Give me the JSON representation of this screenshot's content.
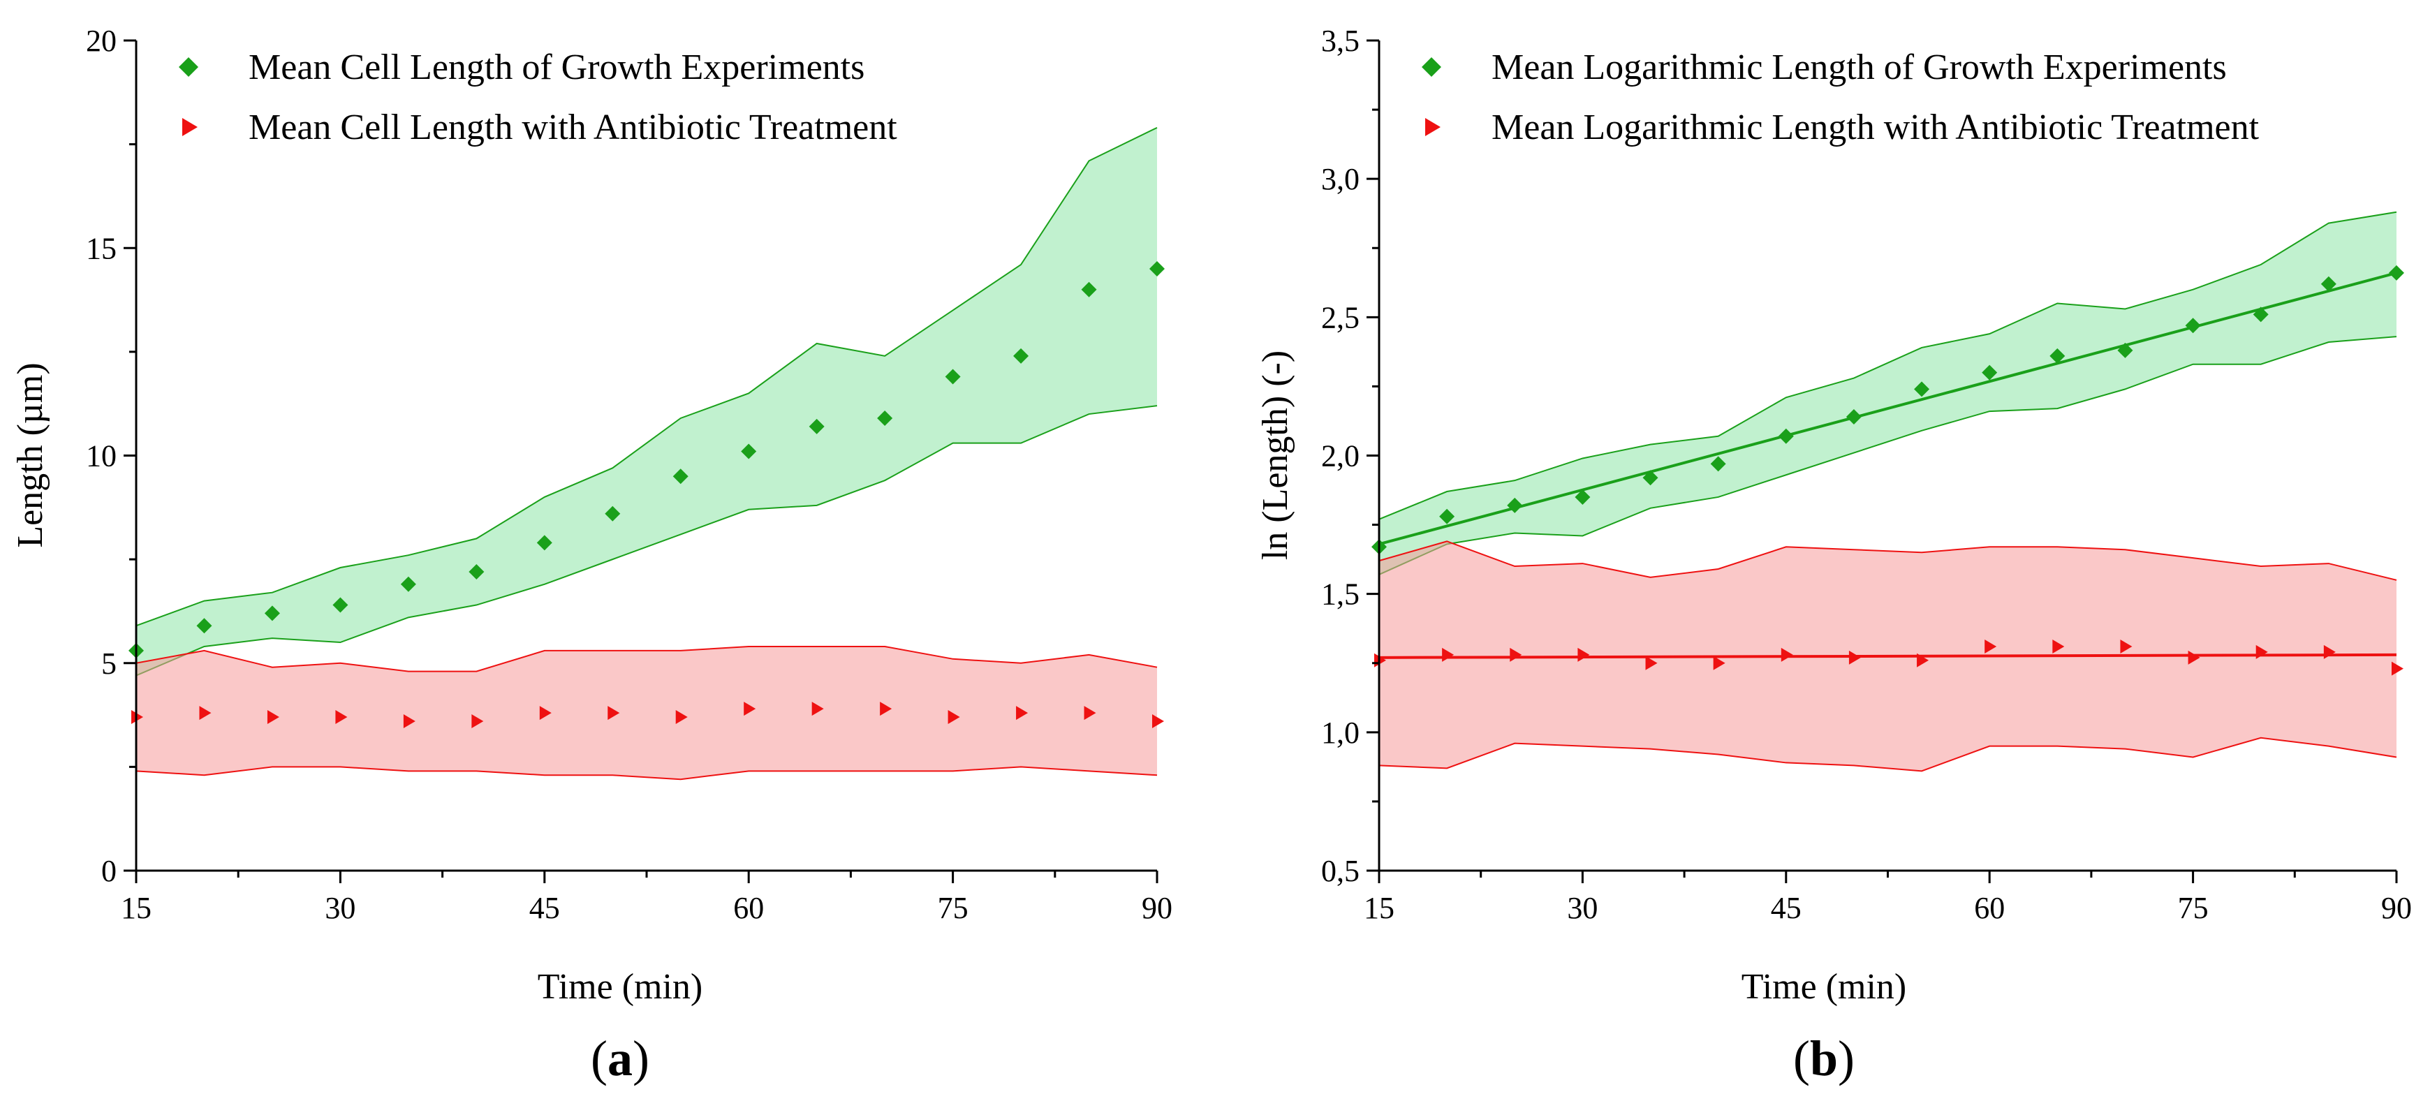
{
  "chart_data": [
    {
      "type": "scatter",
      "panel_label": "a",
      "xlabel": "Time (min)",
      "ylabel": "Length (µm)",
      "xlim": [
        15,
        90
      ],
      "ylim": [
        0,
        20
      ],
      "x_ticks": [
        15,
        30,
        45,
        60,
        75,
        90
      ],
      "x_tick_labels": [
        "15",
        "30",
        "45",
        "60",
        "75",
        "90"
      ],
      "y_ticks": [
        0,
        5,
        10,
        15,
        20
      ],
      "y_tick_labels": [
        "0",
        "5",
        "10",
        "15",
        "20"
      ],
      "legend_position": "top-left",
      "series": [
        {
          "name": "Mean Cell Length of Growth Experiments",
          "marker": "diamond",
          "color": "#1aa01a",
          "band_color": "#8ee6a8",
          "x": [
            15,
            20,
            25,
            30,
            35,
            40,
            45,
            50,
            55,
            60,
            65,
            70,
            75,
            80,
            85,
            90
          ],
          "y": [
            5.3,
            5.9,
            6.2,
            6.4,
            6.9,
            7.2,
            7.9,
            8.6,
            9.5,
            10.1,
            10.7,
            10.9,
            11.9,
            12.4,
            14.0,
            14.5
          ],
          "lower": [
            4.7,
            5.4,
            5.6,
            5.5,
            6.1,
            6.4,
            6.9,
            7.5,
            8.1,
            8.7,
            8.8,
            9.4,
            10.3,
            10.3,
            11.0,
            11.2
          ],
          "upper": [
            5.9,
            6.5,
            6.7,
            7.3,
            7.6,
            8.0,
            9.0,
            9.7,
            10.9,
            11.5,
            12.7,
            12.4,
            13.5,
            14.6,
            17.1,
            17.9
          ]
        },
        {
          "name": "Mean Cell Length with Antibiotic Treatment",
          "marker": "triangle-right",
          "color": "#ee1111",
          "band_color": "#f59a9a",
          "x": [
            15,
            20,
            25,
            30,
            35,
            40,
            45,
            50,
            55,
            60,
            65,
            70,
            75,
            80,
            85,
            90
          ],
          "y": [
            3.7,
            3.8,
            3.7,
            3.7,
            3.6,
            3.6,
            3.8,
            3.8,
            3.7,
            3.9,
            3.9,
            3.9,
            3.7,
            3.8,
            3.8,
            3.6
          ],
          "lower": [
            2.4,
            2.3,
            2.5,
            2.5,
            2.4,
            2.4,
            2.3,
            2.3,
            2.2,
            2.4,
            2.4,
            2.4,
            2.4,
            2.5,
            2.4,
            2.3
          ],
          "upper": [
            5.0,
            5.3,
            4.9,
            5.0,
            4.8,
            4.8,
            5.3,
            5.3,
            5.3,
            5.4,
            5.4,
            5.4,
            5.1,
            5.0,
            5.2,
            4.9
          ]
        }
      ]
    },
    {
      "type": "scatter",
      "panel_label": "b",
      "xlabel": "Time (min)",
      "ylabel": "ln (Length) (-)",
      "xlim": [
        15,
        90
      ],
      "ylim": [
        0.5,
        3.5
      ],
      "x_ticks": [
        15,
        30,
        45,
        60,
        75,
        90
      ],
      "x_tick_labels": [
        "15",
        "30",
        "45",
        "60",
        "75",
        "90"
      ],
      "y_ticks": [
        0.5,
        1.0,
        1.5,
        2.0,
        2.5,
        3.0,
        3.5
      ],
      "y_tick_labels": [
        "0,5",
        "1,0",
        "1,5",
        "2,0",
        "2,5",
        "3,0",
        "3,5"
      ],
      "legend_position": "top-left",
      "series": [
        {
          "name": "Mean Logarithmic Length of Growth Experiments",
          "marker": "diamond",
          "color": "#1aa01a",
          "band_color": "#8ee6a8",
          "x": [
            15,
            20,
            25,
            30,
            35,
            40,
            45,
            50,
            55,
            60,
            65,
            70,
            75,
            80,
            85,
            90
          ],
          "y": [
            1.67,
            1.78,
            1.82,
            1.85,
            1.92,
            1.97,
            2.07,
            2.14,
            2.24,
            2.3,
            2.36,
            2.38,
            2.47,
            2.51,
            2.62,
            2.66
          ],
          "lower": [
            1.57,
            1.68,
            1.72,
            1.71,
            1.81,
            1.85,
            1.93,
            2.01,
            2.09,
            2.16,
            2.17,
            2.24,
            2.33,
            2.33,
            2.41,
            2.43
          ],
          "upper": [
            1.77,
            1.87,
            1.91,
            1.99,
            2.04,
            2.07,
            2.21,
            2.28,
            2.39,
            2.44,
            2.55,
            2.53,
            2.6,
            2.69,
            2.84,
            2.88
          ],
          "fit": {
            "x": [
              15,
              90
            ],
            "y": [
              1.68,
              2.66
            ]
          }
        },
        {
          "name": "Mean Logarithmic Length with Antibiotic Treatment",
          "marker": "triangle-right",
          "color": "#ee1111",
          "band_color": "#f59a9a",
          "x": [
            15,
            20,
            25,
            30,
            35,
            40,
            45,
            50,
            55,
            60,
            65,
            70,
            75,
            80,
            85,
            90
          ],
          "y": [
            1.26,
            1.28,
            1.28,
            1.28,
            1.25,
            1.25,
            1.28,
            1.27,
            1.26,
            1.31,
            1.31,
            1.31,
            1.27,
            1.29,
            1.29,
            1.23
          ],
          "lower": [
            0.88,
            0.87,
            0.96,
            0.95,
            0.94,
            0.92,
            0.89,
            0.88,
            0.86,
            0.95,
            0.95,
            0.94,
            0.91,
            0.98,
            0.95,
            0.91
          ],
          "upper": [
            1.62,
            1.69,
            1.6,
            1.61,
            1.56,
            1.59,
            1.67,
            1.66,
            1.65,
            1.67,
            1.67,
            1.66,
            1.63,
            1.6,
            1.61,
            1.55
          ],
          "fit": {
            "x": [
              15,
              90
            ],
            "y": [
              1.27,
              1.28
            ]
          }
        }
      ]
    }
  ]
}
